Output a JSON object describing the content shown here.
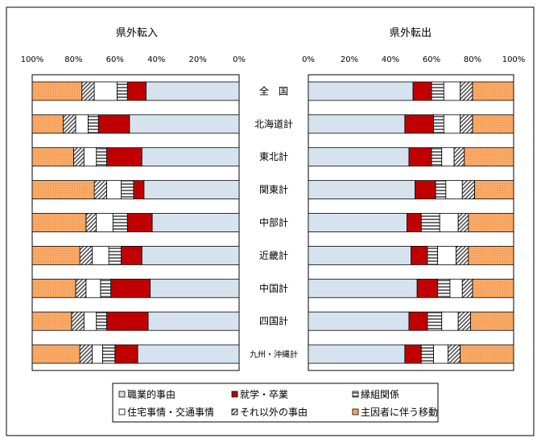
{
  "chart_data": {
    "type": "bar",
    "stacked": true,
    "orientation": "horizontal",
    "categories": [
      "全　国",
      "北海道計",
      "東北計",
      "関東計",
      "中部計",
      "近畿計",
      "中国計",
      "四国計",
      "九州・沖縄計"
    ],
    "panels": [
      {
        "title": "県外転入",
        "direction": "right-to-left",
        "ticks": [
          "100%",
          "80%",
          "60%",
          "40%",
          "20%",
          "0%"
        ],
        "xlim": [
          0,
          100
        ],
        "series": [
          {
            "name": "職業的事由",
            "values": [
              45,
              53,
              47,
              46,
              42,
              47,
              43,
              44,
              49
            ]
          },
          {
            "name": "就学・卒業",
            "values": [
              9,
              15,
              17,
              5,
              12,
              10,
              19,
              20,
              11
            ]
          },
          {
            "name": "縁組関係",
            "values": [
              5,
              5,
              5,
              6,
              7,
              6,
              5,
              5,
              6
            ]
          },
          {
            "name": "住宅事情・交通事情",
            "values": [
              11,
              6,
              6,
              7,
              8,
              8,
              7,
              6,
              5
            ]
          },
          {
            "name": "それ以外の事由",
            "values": [
              6,
              6,
              5,
              6,
              5,
              6,
              5,
              6,
              6
            ]
          },
          {
            "name": "主因者に伴う移動",
            "values": [
              24,
              15,
              20,
              30,
              26,
              23,
              21,
              19,
              23
            ]
          }
        ]
      },
      {
        "title": "県外転出",
        "direction": "left-to-right",
        "ticks": [
          "0%",
          "20%",
          "40%",
          "60%",
          "80%",
          "100%"
        ],
        "xlim": [
          0,
          100
        ],
        "series": [
          {
            "name": "職業的事由",
            "values": [
              51,
              47,
              49,
              52,
              48,
              50,
              53,
              49,
              47
            ]
          },
          {
            "name": "就学・卒業",
            "values": [
              9,
              14,
              11,
              10,
              7,
              8,
              10,
              9,
              8
            ]
          },
          {
            "name": "縁組関係",
            "values": [
              6,
              5,
              5,
              5,
              9,
              5,
              6,
              7,
              6
            ]
          },
          {
            "name": "住宅事情・交通事情",
            "values": [
              8,
              8,
              6,
              8,
              9,
              9,
              6,
              8,
              7
            ]
          },
          {
            "name": "それ以外の事由",
            "values": [
              6,
              6,
              5,
              6,
              5,
              6,
              5,
              6,
              6
            ]
          },
          {
            "name": "主因者に伴う移動",
            "values": [
              20,
              20,
              24,
              19,
              22,
              22,
              20,
              21,
              26
            ]
          }
        ]
      }
    ],
    "legend": {
      "placement": "bottom",
      "entries": [
        "職業的事由",
        "就学・卒業",
        "縁組関係",
        "住宅事情・交通事情",
        "それ以外の事由",
        "主因者に伴う移動"
      ]
    },
    "colors": {
      "職業的事由": "#d6e3ef",
      "就学・卒業": "#c00000",
      "縁組関係": "#a6a6a6",
      "住宅事情・交通事情": "#ffffff",
      "それ以外の事由": "#c8c8c8",
      "主因者に伴う移動": "#f4a460"
    }
  }
}
